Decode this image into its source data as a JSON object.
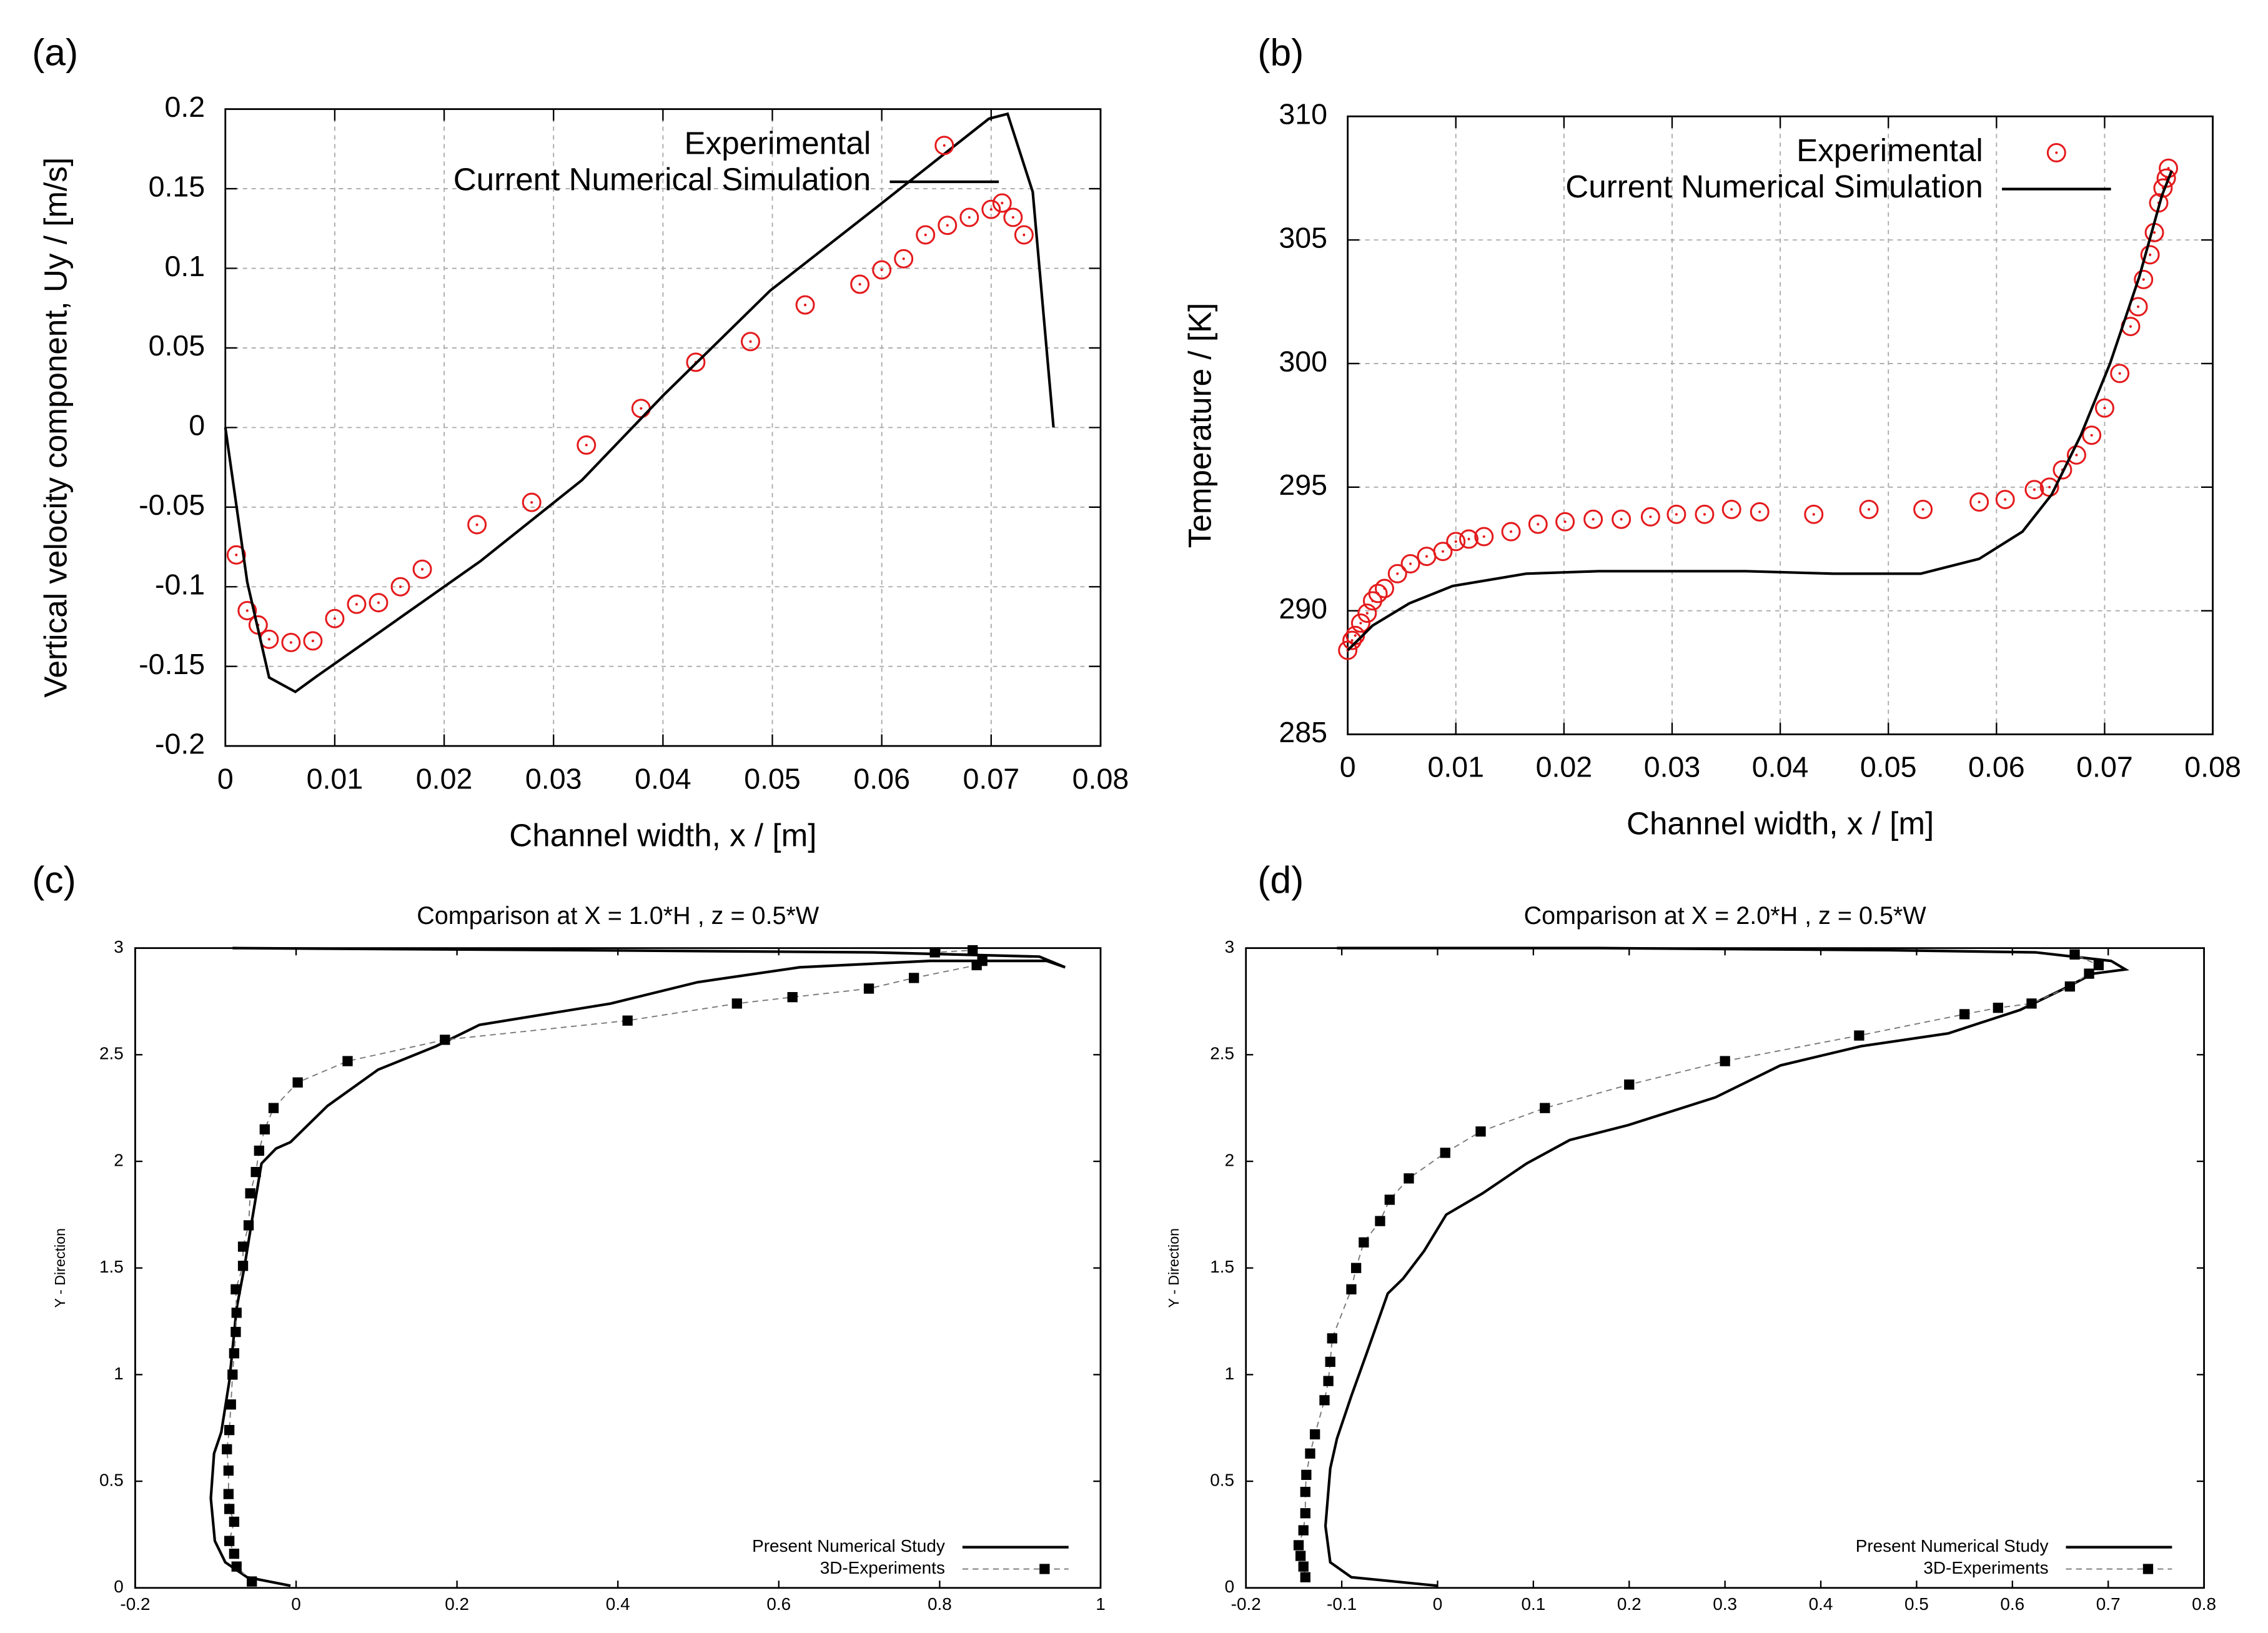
{
  "chart_data": [
    {
      "type": "line",
      "panel": "(a)",
      "xlabel": "Channel width, x / [m]",
      "ylabel": "Vertical velocity component, Uy / [m/s]",
      "xlim": [
        0,
        0.08
      ],
      "ylim": [
        -0.2,
        0.2
      ],
      "xticks": [
        0,
        0.01,
        0.02,
        0.03,
        0.04,
        0.05,
        0.06,
        0.07,
        0.08
      ],
      "yticks": [
        -0.2,
        -0.15,
        -0.1,
        -0.05,
        0,
        0.05,
        0.1,
        0.15,
        0.2
      ],
      "grid": true,
      "legend": "upper right",
      "series": [
        {
          "name": "Experimental",
          "color": "#e41a1c",
          "marker": "circle",
          "line": "none",
          "x": [
            0.001,
            0.002,
            0.003,
            0.004,
            0.006,
            0.008,
            0.01,
            0.012,
            0.014,
            0.016,
            0.018,
            0.023,
            0.028,
            0.033,
            0.038,
            0.043,
            0.048,
            0.053,
            0.058,
            0.06,
            0.062,
            0.064,
            0.066,
            0.068,
            0.07,
            0.071,
            0.072,
            0.073
          ],
          "values": [
            -0.08,
            -0.115,
            -0.124,
            -0.133,
            -0.135,
            -0.134,
            -0.12,
            -0.111,
            -0.11,
            -0.1,
            -0.089,
            -0.061,
            -0.047,
            -0.011,
            0.012,
            0.041,
            0.054,
            0.077,
            0.09,
            0.099,
            0.106,
            0.121,
            0.127,
            0.132,
            0.137,
            0.141,
            0.132,
            0.121
          ]
        },
        {
          "name": "Current Numerical Simulation",
          "color": "#000000",
          "marker": "none",
          "line": "solid",
          "x": [
            0,
            0.002,
            0.004,
            0.0064,
            0.0084,
            0.014,
            0.0233,
            0.0326,
            0.04,
            0.0498,
            0.0591,
            0.0698,
            0.0715,
            0.0738,
            0.0757
          ],
          "values": [
            0,
            -0.097,
            -0.157,
            -0.166,
            -0.156,
            -0.129,
            -0.084,
            -0.033,
            0.02,
            0.086,
            0.136,
            0.194,
            0.197,
            0.148,
            0
          ]
        }
      ]
    },
    {
      "type": "line",
      "panel": "(b)",
      "xlabel": "Channel width, x / [m]",
      "ylabel": "Temperature / [K]",
      "xlim": [
        0,
        0.08
      ],
      "ylim": [
        285,
        310
      ],
      "xticks": [
        0,
        0.01,
        0.02,
        0.03,
        0.04,
        0.05,
        0.06,
        0.07,
        0.08
      ],
      "yticks": [
        285,
        290,
        295,
        300,
        305,
        310
      ],
      "grid": true,
      "legend": "upper right",
      "series": [
        {
          "name": "Experimental",
          "color": "#e41a1c",
          "marker": "circle",
          "line": "none",
          "x": [
            0,
            0.0004,
            0.0007,
            0.0012,
            0.0018,
            0.0023,
            0.0028,
            0.0034,
            0.0046,
            0.0058,
            0.0073,
            0.0088,
            0.01,
            0.0112,
            0.0126,
            0.0151,
            0.0176,
            0.0201,
            0.0227,
            0.0253,
            0.028,
            0.0304,
            0.033,
            0.0355,
            0.0381,
            0.0431,
            0.0482,
            0.0532,
            0.0584,
            0.0608,
            0.0635,
            0.0649,
            0.0661,
            0.0674,
            0.0688,
            0.07,
            0.0714,
            0.0724,
            0.0731,
            0.0736,
            0.0742,
            0.0746,
            0.075,
            0.0754,
            0.0757,
            0.0759
          ],
          "values": [
            288.4,
            288.8,
            289.0,
            289.5,
            289.9,
            290.4,
            290.7,
            290.9,
            291.5,
            291.9,
            292.2,
            292.4,
            292.8,
            292.9,
            293.0,
            293.2,
            293.5,
            293.6,
            293.7,
            293.7,
            293.8,
            293.9,
            293.9,
            294.1,
            294.0,
            293.9,
            294.1,
            294.1,
            294.4,
            294.5,
            294.9,
            295.0,
            295.7,
            296.3,
            297.1,
            298.2,
            299.6,
            301.5,
            302.3,
            303.4,
            304.4,
            305.3,
            306.5,
            307.1,
            307.5,
            307.9
          ]
        },
        {
          "name": "Current Numerical Simulation",
          "color": "#000000",
          "marker": "none",
          "line": "solid",
          "x": [
            0,
            0.0023,
            0.0057,
            0.0097,
            0.0165,
            0.0232,
            0.0368,
            0.0449,
            0.053,
            0.0584,
            0.0624,
            0.0651,
            0.0678,
            0.0705,
            0.0732,
            0.0753,
            0.0762
          ],
          "values": [
            288.4,
            289.4,
            290.3,
            291.0,
            291.5,
            291.6,
            291.6,
            291.5,
            291.5,
            292.1,
            293.2,
            294.7,
            297.1,
            300.0,
            303.5,
            306.8,
            307.8
          ]
        }
      ]
    },
    {
      "type": "line",
      "panel": "(c)",
      "title": "Comparison at X = 1.0*H , z = 0.5*W",
      "ylabel": "Y - Direction",
      "xlim": [
        -0.2,
        1
      ],
      "ylim": [
        0,
        3
      ],
      "xticks": [
        -0.2,
        0,
        0.2,
        0.4,
        0.6,
        0.8,
        1
      ],
      "yticks": [
        0,
        0.5,
        1,
        1.5,
        2,
        2.5,
        3
      ],
      "grid": false,
      "legend": "lower right",
      "series": [
        {
          "name": "Present Numerical Study",
          "color": "#000000",
          "marker": "none",
          "line": "solid",
          "x": [
            -0.007,
            -0.061,
            -0.088,
            -0.101,
            -0.106,
            -0.102,
            -0.093,
            -0.083,
            -0.074,
            -0.064,
            -0.055,
            -0.043,
            -0.025,
            -0.007,
            0.039,
            0.102,
            0.174,
            0.228,
            0.391,
            0.499,
            0.626,
            0.788,
            0.933,
            0.956,
            0.924,
            0.716,
            0.355,
            -0.079
          ],
          "values": [
            0.01,
            0.05,
            0.12,
            0.22,
            0.42,
            0.63,
            0.73,
            0.97,
            1.31,
            1.51,
            1.72,
            1.99,
            2.06,
            2.09,
            2.26,
            2.43,
            2.54,
            2.64,
            2.74,
            2.84,
            2.91,
            2.94,
            2.94,
            2.91,
            2.96,
            2.98,
            2.99,
            3.0
          ]
        },
        {
          "name": "3D-Experiments",
          "color": "#000000",
          "marker": "square",
          "line": "dashed",
          "x": [
            -0.055,
            -0.074,
            -0.077,
            -0.083,
            -0.077,
            -0.083,
            -0.084,
            -0.084,
            -0.086,
            -0.083,
            -0.081,
            -0.079,
            -0.077,
            -0.075,
            -0.074,
            -0.075,
            -0.066,
            -0.066,
            -0.059,
            -0.057,
            -0.05,
            -0.046,
            -0.039,
            -0.028,
            0.002,
            0.064,
            0.185,
            0.412,
            0.548,
            0.617,
            0.712,
            0.768,
            0.846,
            0.853,
            0.841,
            0.794
          ],
          "values": [
            0.03,
            0.1,
            0.16,
            0.22,
            0.31,
            0.37,
            0.44,
            0.55,
            0.65,
            0.74,
            0.86,
            1.0,
            1.1,
            1.2,
            1.29,
            1.4,
            1.51,
            1.6,
            1.7,
            1.85,
            1.95,
            2.05,
            2.15,
            2.25,
            2.37,
            2.47,
            2.57,
            2.66,
            2.74,
            2.77,
            2.81,
            2.86,
            2.92,
            2.94,
            2.99,
            2.98
          ]
        }
      ]
    },
    {
      "type": "line",
      "panel": "(d)",
      "title": "Comparison at X = 2.0*H , z = 0.5*W",
      "ylabel": "Y - Direction",
      "xlim": [
        -0.2,
        0.8
      ],
      "ylim": [
        0,
        3
      ],
      "xticks": [
        -0.2,
        -0.1,
        0,
        0.1,
        0.2,
        0.3,
        0.4,
        0.5,
        0.6,
        0.7,
        0.8
      ],
      "yticks": [
        0,
        0.5,
        1,
        1.5,
        2,
        2.5,
        3
      ],
      "grid": false,
      "legend": "lower right",
      "series": [
        {
          "name": "Present Numerical Study",
          "color": "#000000",
          "marker": "none",
          "line": "solid",
          "x": [
            0.0,
            -0.09,
            -0.112,
            -0.117,
            -0.112,
            -0.105,
            -0.09,
            -0.074,
            -0.052,
            -0.036,
            -0.014,
            0.009,
            0.047,
            0.093,
            0.138,
            0.199,
            0.29,
            0.358,
            0.442,
            0.533,
            0.608,
            0.654,
            0.684,
            0.718,
            0.703,
            0.624,
            0.472,
            0.168,
            -0.105
          ],
          "values": [
            0.01,
            0.05,
            0.12,
            0.29,
            0.56,
            0.7,
            0.9,
            1.1,
            1.38,
            1.45,
            1.58,
            1.75,
            1.85,
            1.99,
            2.1,
            2.17,
            2.3,
            2.45,
            2.54,
            2.6,
            2.71,
            2.81,
            2.88,
            2.9,
            2.94,
            2.98,
            2.99,
            3.0,
            3.0
          ]
        },
        {
          "name": "3D-Experiments",
          "color": "#000000",
          "marker": "square",
          "line": "dashed",
          "x": [
            -0.138,
            -0.14,
            -0.143,
            -0.145,
            -0.14,
            -0.138,
            -0.138,
            -0.137,
            -0.133,
            -0.128,
            -0.118,
            -0.114,
            -0.112,
            -0.11,
            -0.09,
            -0.085,
            -0.077,
            -0.06,
            -0.05,
            -0.03,
            0.008,
            0.045,
            0.112,
            0.2,
            0.3,
            0.44,
            0.55,
            0.585,
            0.62,
            0.66,
            0.68,
            0.69,
            0.665
          ],
          "values": [
            0.05,
            0.1,
            0.15,
            0.2,
            0.27,
            0.35,
            0.45,
            0.53,
            0.63,
            0.72,
            0.88,
            0.97,
            1.06,
            1.17,
            1.4,
            1.5,
            1.62,
            1.72,
            1.82,
            1.92,
            2.04,
            2.14,
            2.25,
            2.36,
            2.47,
            2.59,
            2.69,
            2.72,
            2.74,
            2.82,
            2.88,
            2.92,
            2.97
          ]
        }
      ]
    }
  ]
}
